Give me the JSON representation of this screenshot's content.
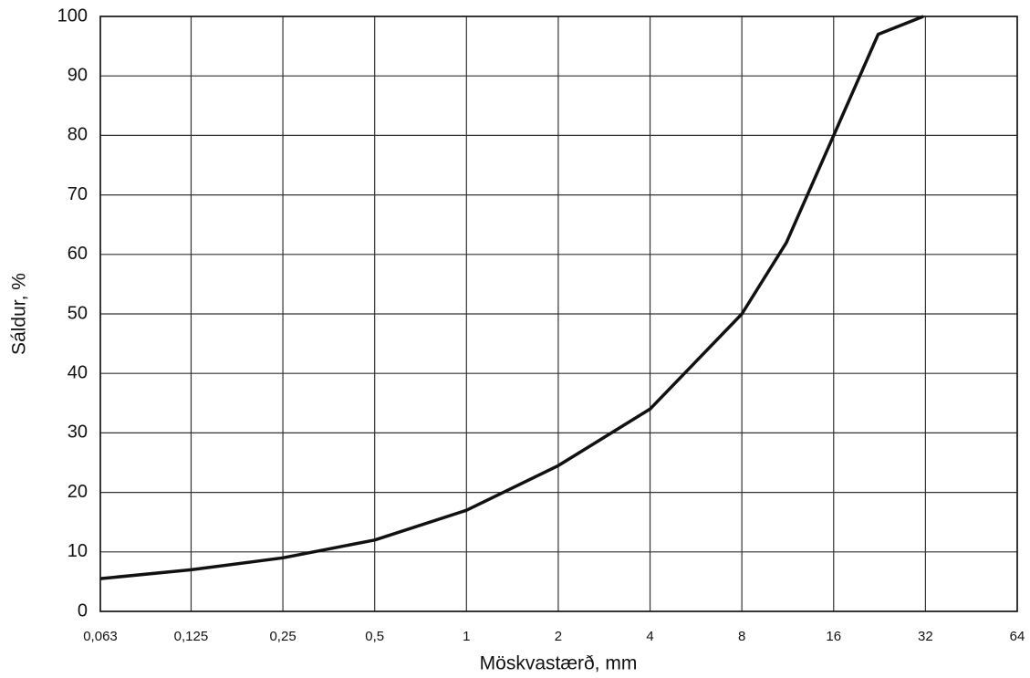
{
  "chart_data": {
    "type": "line",
    "x_label": "Möskvastærð, mm",
    "y_label": "Sáldur, %",
    "x": [
      0.063,
      0.125,
      0.25,
      0.5,
      1,
      2,
      4,
      8,
      11.2,
      16,
      22.4,
      31.5
    ],
    "values": [
      5.5,
      7,
      9,
      12,
      17,
      24.5,
      34,
      50,
      62,
      80,
      97,
      100
    ],
    "color": "#111111",
    "xlog": true,
    "xlim": [
      0.063,
      64
    ],
    "xticks": [
      {
        "value": 0.063,
        "label": "0,063"
      },
      {
        "value": 0.125,
        "label": "0,125"
      },
      {
        "value": 0.25,
        "label": "0,25"
      },
      {
        "value": 0.5,
        "label": "0,5"
      },
      1,
      2,
      4,
      8,
      16,
      32,
      64
    ],
    "ylim": [
      0,
      100
    ],
    "yticks": [
      0,
      10,
      20,
      30,
      40,
      50,
      60,
      70,
      80,
      90,
      100
    ],
    "grid": true
  }
}
